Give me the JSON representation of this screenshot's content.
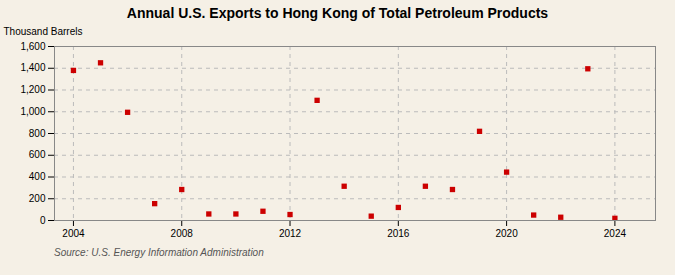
{
  "chart_data": {
    "type": "scatter",
    "title": "Annual U.S. Exports to Hong Kong of Total Petroleum Products",
    "ylabel": "Thousand Barrels",
    "annotations": [
      "Source: U.S. Energy Information Administration"
    ],
    "x": [
      2004,
      2005,
      2006,
      2007,
      2008,
      2009,
      2010,
      2011,
      2012,
      2013,
      2014,
      2015,
      2016,
      2017,
      2018,
      2019,
      2020,
      2021,
      2022,
      2023,
      2024
    ],
    "values": [
      1380,
      1450,
      995,
      155,
      285,
      60,
      60,
      85,
      55,
      1105,
      315,
      40,
      120,
      315,
      285,
      820,
      445,
      50,
      30,
      1395,
      20
    ],
    "color": "#cc0000",
    "marker": "square",
    "xlim": [
      2003.3,
      2025.5
    ],
    "xticks": [
      2004,
      2008,
      2012,
      2016,
      2020,
      2024
    ],
    "ylim": [
      0,
      1600
    ],
    "yticks": [
      0,
      200,
      400,
      600,
      800,
      {
        "value": 1000,
        "label": "1,000"
      },
      {
        "value": 1200,
        "label": "1,200"
      },
      {
        "value": 1400,
        "label": "1,400"
      },
      {
        "value": 1600,
        "label": "1,600"
      }
    ],
    "grid": true
  }
}
